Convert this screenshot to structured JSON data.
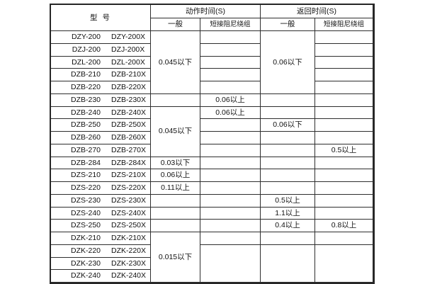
{
  "page": {
    "background": "#ffffff",
    "text_color": "#111111",
    "border_color": "#2e2e2e"
  },
  "table": {
    "header": {
      "model_label": "型  号",
      "action_time_label": "动作时间(S)",
      "return_time_label": "返回时间(S)",
      "general_label": "一般",
      "damping_label": "短接阻尼绕组"
    },
    "models": [
      [
        "DZY-200",
        "DZY-200X"
      ],
      [
        "DZJ-200",
        "DZJ-200X"
      ],
      [
        "DZL-200",
        "DZL-200X"
      ],
      [
        "DZB-210",
        "DZB-210X"
      ],
      [
        "DZB-220",
        "DZB-220X"
      ],
      [
        "DZB-230",
        "DZB-230X"
      ],
      [
        "DZB-240",
        "DZB-240X"
      ],
      [
        "DZB-250",
        "DZB-250X"
      ],
      [
        "DZB-260",
        "DZB-260X"
      ],
      [
        "DZB-270",
        "DZB-270X"
      ],
      [
        "DZB-284",
        "DZB-284X"
      ],
      [
        "DZS-210",
        "DZS-210X"
      ],
      [
        "DZS-220",
        "DZS-220X"
      ],
      [
        "DZS-230",
        "DZS-230X"
      ],
      [
        "DZS-240",
        "DZS-240X"
      ],
      [
        "DZS-250",
        "DZS-250X"
      ],
      [
        "DZK-210",
        "DZK-210X"
      ],
      [
        "DZK-220",
        "DZK-220X"
      ],
      [
        "DZK-230",
        "DZK-230X"
      ],
      [
        "DZK-240",
        "DZK-240X"
      ]
    ],
    "value_columns": {
      "action_general": [
        [
          1,
          5,
          "0.045以下"
        ],
        [
          6,
          1,
          ""
        ],
        [
          7,
          4,
          "0.045以下"
        ],
        [
          11,
          1,
          "0.03以下"
        ],
        [
          12,
          1,
          "0.06以上"
        ],
        [
          13,
          1,
          "0.11以上"
        ],
        [
          14,
          1,
          ""
        ],
        [
          15,
          1,
          ""
        ],
        [
          16,
          1,
          ""
        ],
        [
          17,
          4,
          "0.015以下"
        ]
      ],
      "action_damping": [
        [
          1,
          1,
          ""
        ],
        [
          2,
          1,
          ""
        ],
        [
          3,
          1,
          ""
        ],
        [
          4,
          1,
          ""
        ],
        [
          5,
          1,
          ""
        ],
        [
          6,
          1,
          "0.06以上"
        ],
        [
          7,
          1,
          "0.06以上"
        ],
        [
          8,
          1,
          ""
        ],
        [
          9,
          1,
          ""
        ],
        [
          10,
          1,
          ""
        ],
        [
          11,
          1,
          ""
        ],
        [
          12,
          1,
          ""
        ],
        [
          13,
          1,
          ""
        ],
        [
          14,
          1,
          ""
        ],
        [
          15,
          1,
          ""
        ],
        [
          16,
          1,
          ""
        ],
        [
          17,
          1,
          ""
        ],
        [
          18,
          3,
          ""
        ]
      ],
      "return_general": [
        [
          1,
          5,
          "0.06以下"
        ],
        [
          6,
          1,
          ""
        ],
        [
          7,
          1,
          ""
        ],
        [
          8,
          1,
          "0.06以下"
        ],
        [
          9,
          1,
          ""
        ],
        [
          10,
          1,
          ""
        ],
        [
          11,
          1,
          ""
        ],
        [
          12,
          1,
          ""
        ],
        [
          13,
          1,
          ""
        ],
        [
          14,
          1,
          "0.5以上"
        ],
        [
          15,
          1,
          "1.1以上"
        ],
        [
          16,
          1,
          "0.4以上"
        ],
        [
          17,
          1,
          ""
        ],
        [
          18,
          3,
          ""
        ]
      ],
      "return_damping": [
        [
          1,
          1,
          ""
        ],
        [
          2,
          1,
          ""
        ],
        [
          3,
          1,
          ""
        ],
        [
          4,
          1,
          ""
        ],
        [
          5,
          1,
          ""
        ],
        [
          6,
          1,
          ""
        ],
        [
          7,
          1,
          ""
        ],
        [
          8,
          1,
          ""
        ],
        [
          9,
          1,
          ""
        ],
        [
          10,
          1,
          "0.5以上"
        ],
        [
          11,
          1,
          ""
        ],
        [
          12,
          1,
          ""
        ],
        [
          13,
          1,
          ""
        ],
        [
          14,
          1,
          ""
        ],
        [
          15,
          1,
          ""
        ],
        [
          16,
          1,
          "0.8以上"
        ],
        [
          17,
          1,
          ""
        ],
        [
          18,
          3,
          ""
        ]
      ]
    }
  }
}
